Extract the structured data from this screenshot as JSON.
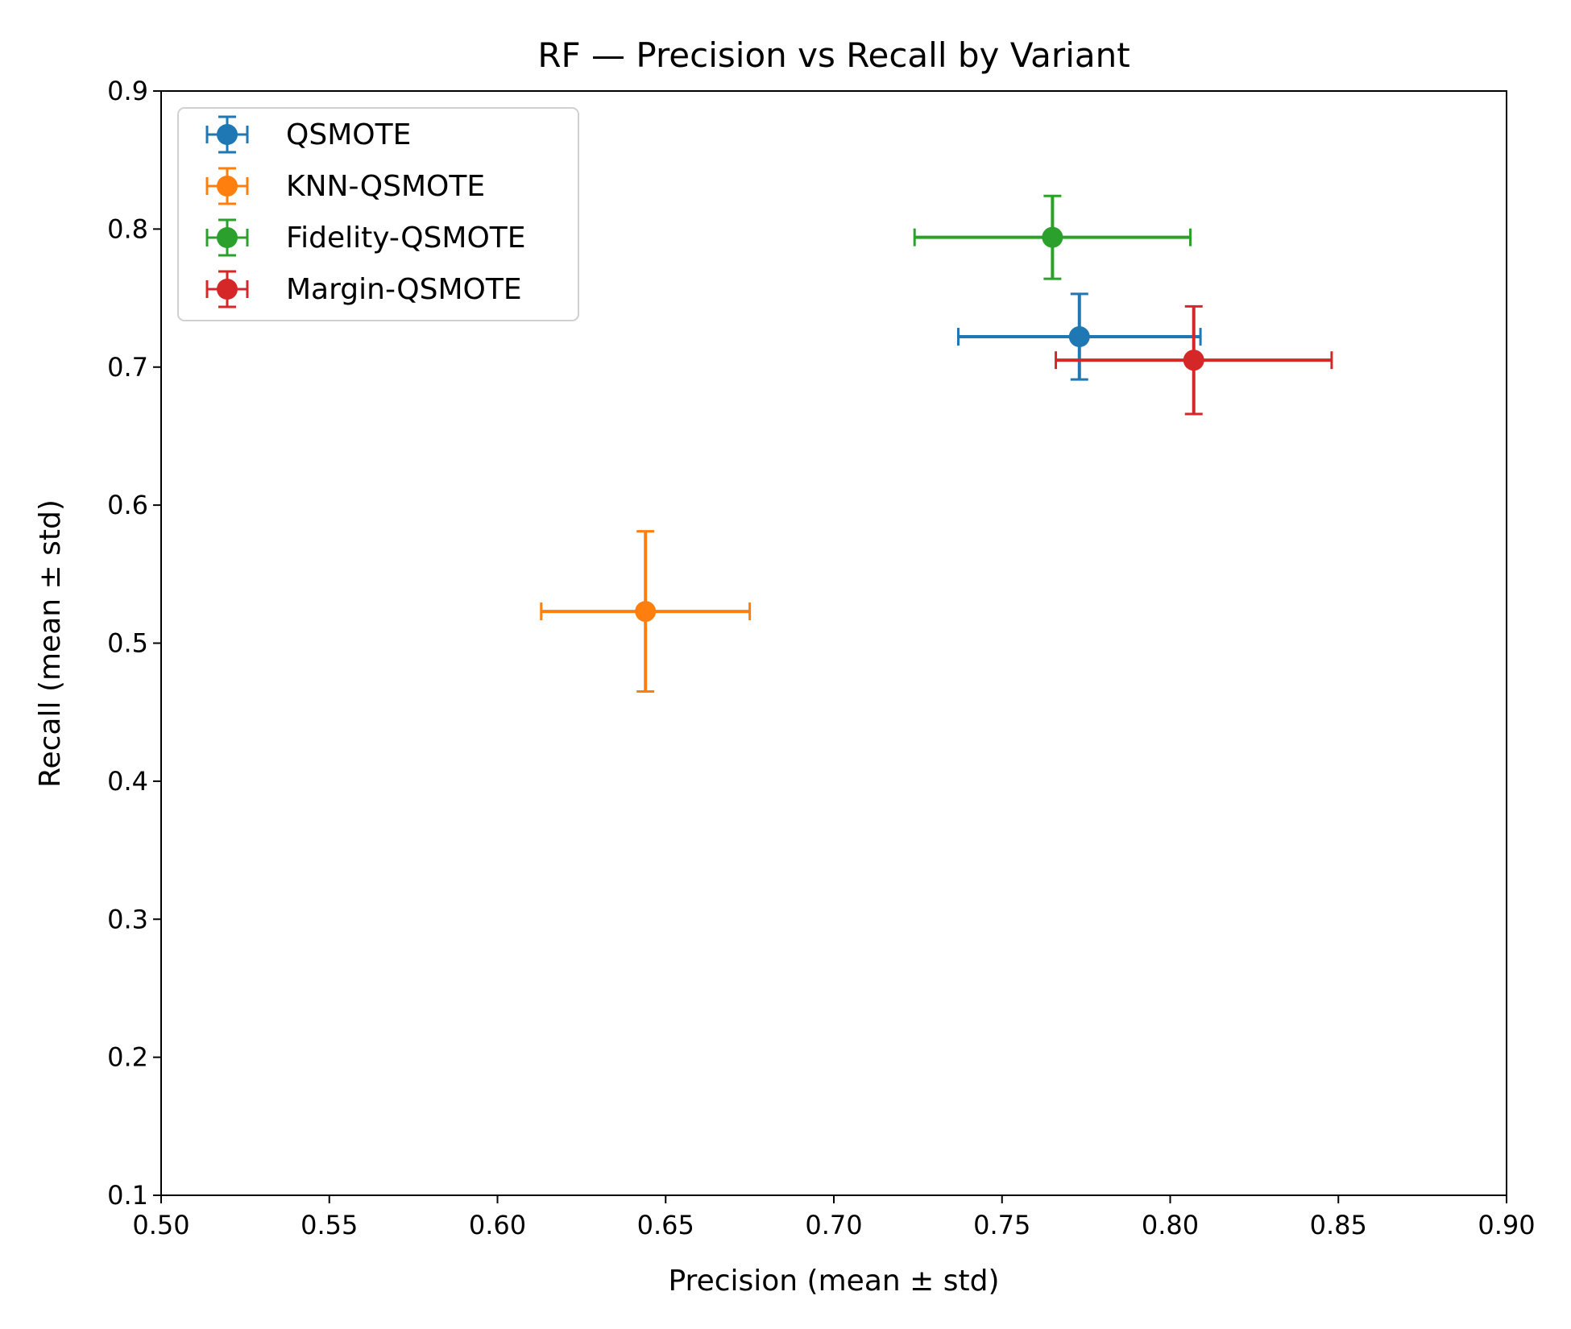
{
  "chart_data": {
    "type": "scatter",
    "title": "RF — Precision vs Recall by Variant",
    "xlabel": "Precision (mean ± std)",
    "ylabel": "Recall (mean ± std)",
    "xlim": [
      0.5,
      0.9
    ],
    "ylim": [
      0.1,
      0.9
    ],
    "xticks": [
      "0.50",
      "0.55",
      "0.60",
      "0.65",
      "0.70",
      "0.75",
      "0.80",
      "0.85",
      "0.90"
    ],
    "yticks": [
      "0.1",
      "0.2",
      "0.3",
      "0.4",
      "0.5",
      "0.6",
      "0.7",
      "0.8",
      "0.9"
    ],
    "xtick_values": [
      0.5,
      0.55,
      0.6,
      0.65,
      0.7,
      0.75,
      0.8,
      0.85,
      0.9
    ],
    "ytick_values": [
      0.1,
      0.2,
      0.3,
      0.4,
      0.5,
      0.6,
      0.7,
      0.8,
      0.9
    ],
    "grid": false,
    "legend_position": "top-left",
    "series": [
      {
        "name": "QSMOTE",
        "color": "#1f77b4",
        "x": 0.773,
        "y": 0.722,
        "x_err": 0.036,
        "y_err": 0.031
      },
      {
        "name": "KNN-QSMOTE",
        "color": "#ff7f0e",
        "x": 0.644,
        "y": 0.523,
        "x_err": 0.031,
        "y_err": 0.058
      },
      {
        "name": "Fidelity-QSMOTE",
        "color": "#2ca02c",
        "x": 0.765,
        "y": 0.794,
        "x_err": 0.041,
        "y_err": 0.03
      },
      {
        "name": "Margin-QSMOTE",
        "color": "#d62728",
        "x": 0.807,
        "y": 0.705,
        "x_err": 0.041,
        "y_err": 0.039
      }
    ]
  }
}
